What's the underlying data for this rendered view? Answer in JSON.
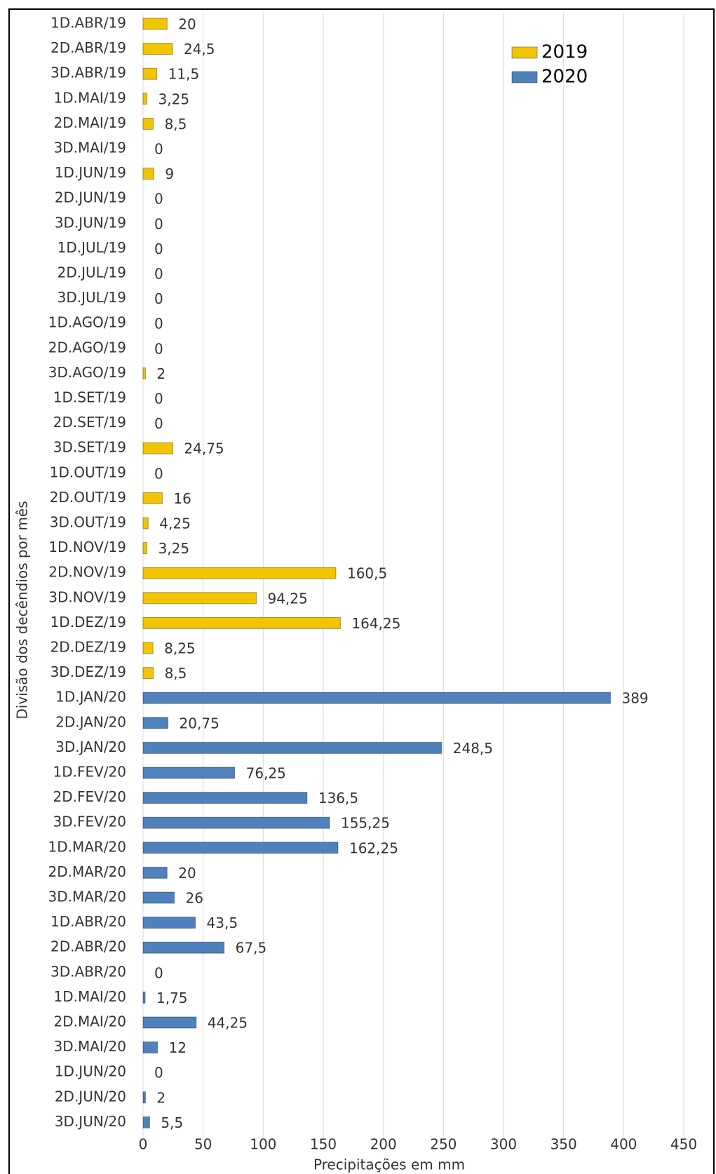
{
  "chart_data": {
    "type": "bar",
    "orientation": "horizontal",
    "x_label": "Precipitações em mm",
    "y_label": "Divisão dos decêndios por mês",
    "categories": [
      "1D.ABR/19",
      "2D.ABR/19",
      "3D.ABR/19",
      "1D.MAI/19",
      "2D.MAI/19",
      "3D.MAI/19",
      "1D.JUN/19",
      "2D.JUN/19",
      "3D.JUN/19",
      "1D.JUL/19",
      "2D.JUL/19",
      "3D.JUL/19",
      "1D.AGO/19",
      "2D.AGO/19",
      "3D.AGO/19",
      "1D.SET/19",
      "2D.SET/19",
      "3D.SET/19",
      "1D.OUT/19",
      "2D.OUT/19",
      "3D.OUT/19",
      "1D.NOV/19",
      "2D.NOV/19",
      "3D.NOV/19",
      "1D.DEZ/19",
      "2D.DEZ/19",
      "3D.DEZ/19",
      "1D.JAN/20",
      "2D.JAN/20",
      "3D.JAN/20",
      "1D.FEV/20",
      "2D.FEV/20",
      "3D.FEV/20",
      "1D.MAR/20",
      "2D.MAR/20",
      "3D.MAR/20",
      "1D.ABR/20",
      "2D.ABR/20",
      "3D.ABR/20",
      "1D.MAI/20",
      "2D.MAI/20",
      "3D.MAI/20",
      "1D.JUN/20",
      "2D.JUN/20",
      "3D.JUN/20"
    ],
    "series": [
      {
        "name": "2019",
        "color": "#f2c500",
        "values": [
          20,
          24.5,
          11.5,
          3.25,
          8.5,
          0,
          9,
          0,
          0,
          0,
          0,
          0,
          0,
          0,
          2,
          0,
          0,
          24.75,
          0,
          16,
          4.25,
          3.25,
          160.5,
          94.25,
          164.25,
          8.25,
          8.5,
          null,
          null,
          null,
          null,
          null,
          null,
          null,
          null,
          null,
          null,
          null,
          null,
          null,
          null,
          null,
          null,
          null,
          null
        ],
        "value_labels": [
          "20",
          "24,5",
          "11,5",
          "3,25",
          "8,5",
          "0",
          "9",
          "0",
          "0",
          "0",
          "0",
          "0",
          "0",
          "0",
          "2",
          "0",
          "0",
          "24,75",
          "0",
          "16",
          "4,25",
          "3,25",
          "160,5",
          "94,25",
          "164,25",
          "8,25",
          "8,5",
          null,
          null,
          null,
          null,
          null,
          null,
          null,
          null,
          null,
          null,
          null,
          null,
          null,
          null,
          null,
          null,
          null,
          null
        ]
      },
      {
        "name": "2020",
        "color": "#4f81bd",
        "values": [
          null,
          null,
          null,
          null,
          null,
          null,
          null,
          null,
          null,
          null,
          null,
          null,
          null,
          null,
          null,
          null,
          null,
          null,
          null,
          null,
          null,
          null,
          null,
          null,
          null,
          null,
          null,
          389,
          20.75,
          248.5,
          76.25,
          136.5,
          155.25,
          162.25,
          20,
          26,
          43.5,
          67.5,
          0,
          1.75,
          44.25,
          12,
          0,
          2,
          5.5
        ],
        "value_labels": [
          null,
          null,
          null,
          null,
          null,
          null,
          null,
          null,
          null,
          null,
          null,
          null,
          null,
          null,
          null,
          null,
          null,
          null,
          null,
          null,
          null,
          null,
          null,
          null,
          null,
          null,
          null,
          "389",
          "20,75",
          "248,5",
          "76,25",
          "136,5",
          "155,25",
          "162,25",
          "20",
          "26",
          "43,5",
          "67,5",
          "0",
          "1,75",
          "44,25",
          "12",
          "0",
          "2",
          "5,5"
        ]
      }
    ],
    "xlim": [
      0,
      450
    ],
    "xticks": [
      0,
      50,
      100,
      150,
      200,
      250,
      300,
      350,
      400,
      450
    ],
    "grid": true,
    "legend": "top-right"
  }
}
